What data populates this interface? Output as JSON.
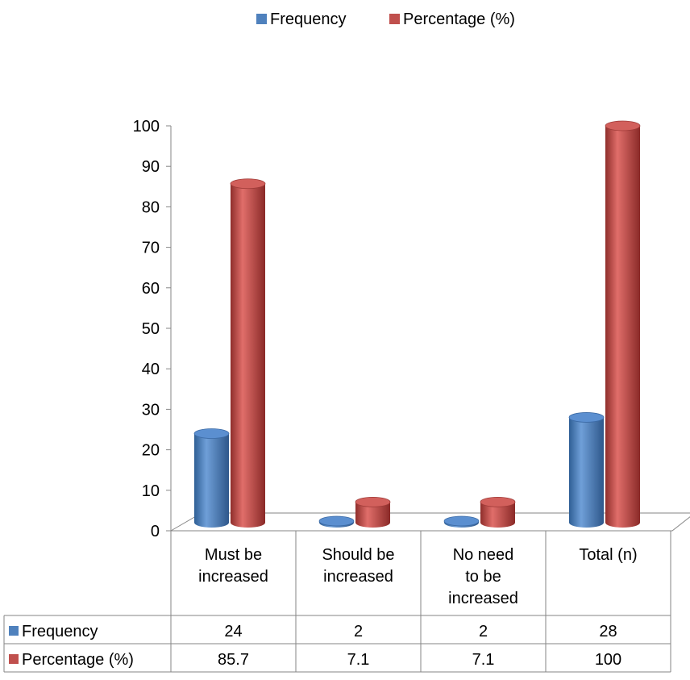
{
  "chart_data": {
    "type": "bar",
    "title": "",
    "xlabel": "",
    "ylabel": "",
    "ylim": [
      0,
      100
    ],
    "yticks": [
      0,
      10,
      20,
      30,
      40,
      50,
      60,
      70,
      80,
      90,
      100
    ],
    "legend_position": "top",
    "categories": [
      [
        "Must be",
        "increased"
      ],
      [
        "Should be",
        "increased"
      ],
      [
        "No need",
        "to be",
        "increased"
      ],
      [
        "Total (n)"
      ]
    ],
    "series": [
      {
        "name": "Frequency",
        "color": "#4F81BD",
        "values": [
          24,
          2,
          2,
          28
        ],
        "labels": [
          "24",
          "2",
          "2",
          "28"
        ]
      },
      {
        "name": "Percentage (%)",
        "color": "#C0504D",
        "values": [
          85.7,
          7.1,
          7.1,
          100
        ],
        "labels": [
          "85.7",
          "7.1",
          "7.1",
          "100"
        ]
      }
    ],
    "data_table": true
  }
}
